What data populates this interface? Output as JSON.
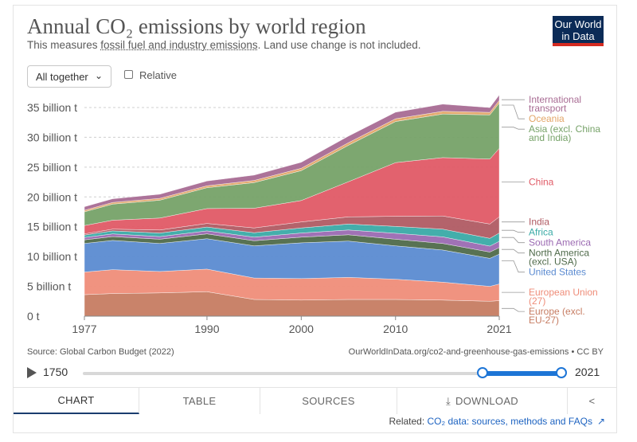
{
  "header": {
    "title": "Annual CO₂ emissions by world region",
    "subtitle_pre": "This measures ",
    "subtitle_link": "fossil fuel and industry emissions",
    "subtitle_post": ". Land use change is not included.",
    "logo_line1": "Our World",
    "logo_line2": "in Data"
  },
  "controls": {
    "stack_mode": "All together",
    "relative_label": "Relative"
  },
  "colors": {
    "international_transport": "#a86b93",
    "oceania": "#e3a668",
    "asia": "#76a268",
    "china": "#e05a66",
    "india": "#b05b63",
    "africa": "#3aaaa6",
    "south_america": "#9b6ab2",
    "north_america": "#4f6a4a",
    "united_states": "#5b8bd1",
    "european_union": "#ef8d79",
    "europe": "#c67c62"
  },
  "chart_data": {
    "type": "area",
    "stacked": true,
    "title": "Annual CO₂ emissions by world region",
    "x": [
      1977,
      1980,
      1985,
      1990,
      1995,
      2000,
      2005,
      2010,
      2015,
      2020,
      2021
    ],
    "xlim": [
      1977,
      2021
    ],
    "ylim": [
      0,
      37
    ],
    "x_ticks": [
      "1977",
      "1990",
      "2000",
      "2010",
      "2021"
    ],
    "x_tick_values": [
      1977,
      1990,
      2000,
      2010,
      2021
    ],
    "y_ticks": [
      "0 t",
      "5 billion t",
      "10 billion t",
      "15 billion t",
      "20 billion t",
      "25 billion t",
      "30 billion t",
      "35 billion t"
    ],
    "y_tick_values": [
      0,
      5,
      10,
      15,
      20,
      25,
      30,
      35
    ],
    "unit": "billion t",
    "series": [
      {
        "name": "Europe (excl. EU-27)",
        "color_key": "europe",
        "values": [
          3.6,
          3.8,
          3.9,
          4.1,
          2.8,
          2.7,
          2.8,
          2.8,
          2.7,
          2.5,
          2.6
        ]
      },
      {
        "name": "European Union (27)",
        "color_key": "european_union",
        "values": [
          3.8,
          4.0,
          3.6,
          3.8,
          3.6,
          3.6,
          3.7,
          3.4,
          3.0,
          2.5,
          2.8
        ]
      },
      {
        "name": "United States",
        "color_key": "united_states",
        "values": [
          4.8,
          4.9,
          4.7,
          5.1,
          5.4,
          6.0,
          6.1,
          5.6,
          5.4,
          4.7,
          5.0
        ]
      },
      {
        "name": "North America (excl. USA)",
        "color_key": "north_america",
        "values": [
          0.6,
          0.65,
          0.7,
          0.8,
          0.85,
          0.95,
          1.05,
          1.1,
          1.1,
          1.05,
          1.1
        ]
      },
      {
        "name": "South America",
        "color_key": "south_america",
        "values": [
          0.4,
          0.45,
          0.45,
          0.5,
          0.6,
          0.7,
          0.8,
          1.0,
          1.1,
          1.0,
          1.05
        ]
      },
      {
        "name": "Africa",
        "color_key": "africa",
        "values": [
          0.4,
          0.5,
          0.6,
          0.65,
          0.75,
          0.85,
          1.0,
          1.15,
          1.3,
          1.3,
          1.4
        ]
      },
      {
        "name": "India",
        "color_key": "india",
        "values": [
          0.2,
          0.3,
          0.5,
          0.6,
          0.8,
          1.0,
          1.2,
          1.7,
          2.2,
          2.4,
          2.7
        ]
      },
      {
        "name": "China",
        "color_key": "china",
        "values": [
          1.4,
          1.5,
          2.0,
          2.5,
          3.3,
          3.6,
          5.9,
          9.0,
          9.8,
          10.9,
          11.5
        ]
      },
      {
        "name": "Asia (excl. China and India)",
        "color_key": "asia",
        "values": [
          2.3,
          2.7,
          3.0,
          3.5,
          4.3,
          5.0,
          6.1,
          6.9,
          7.3,
          7.4,
          7.6
        ]
      },
      {
        "name": "Oceania",
        "color_key": "oceania",
        "values": [
          0.25,
          0.27,
          0.3,
          0.32,
          0.36,
          0.4,
          0.44,
          0.46,
          0.46,
          0.43,
          0.44
        ]
      },
      {
        "name": "International transport",
        "color_key": "international_transport",
        "values": [
          0.6,
          0.62,
          0.7,
          0.8,
          0.9,
          1.0,
          1.1,
          1.1,
          1.2,
          0.8,
          0.9
        ]
      }
    ],
    "legend": [
      {
        "key": "international_transport",
        "lines": [
          "International",
          "transport"
        ],
        "value": 36.3
      },
      {
        "key": "oceania",
        "lines": [
          "Oceania"
        ],
        "value": 35.4
      },
      {
        "key": "asia",
        "lines": [
          "Asia (excl. China",
          "and India)"
        ],
        "value": 31.7
      },
      {
        "key": "china",
        "lines": [
          "China"
        ],
        "value": 22.5
      },
      {
        "key": "india",
        "lines": [
          "India"
        ],
        "value": 15.8
      },
      {
        "key": "africa",
        "lines": [
          "Africa"
        ],
        "value": 14.4
      },
      {
        "key": "south_america",
        "lines": [
          "South America"
        ],
        "value": 13.2
      },
      {
        "key": "north_america",
        "lines": [
          "North America",
          "(excl. USA)"
        ],
        "value": 11.2
      },
      {
        "key": "united_states",
        "lines": [
          "United States"
        ],
        "value": 9.3
      },
      {
        "key": "european_union",
        "lines": [
          "European Union",
          "(27)"
        ],
        "value": 4.0
      },
      {
        "key": "europe",
        "lines": [
          "Europe (excl.",
          "EU-27)"
        ],
        "value": 1.3
      }
    ]
  },
  "footer": {
    "source": "Source: Global Carbon Budget (2022)",
    "url": "OurWorldInData.org/co2-and-greenhouse-gas-emissions • CC BY",
    "timeline_start": "1750",
    "timeline_end": "2021",
    "range_start": 1977,
    "range_end": 2021,
    "tabs": [
      "CHART",
      "TABLE",
      "SOURCES",
      "DOWNLOAD"
    ],
    "related_prefix": "Related: ",
    "related_link": "CO₂ data: sources, methods and FAQs"
  }
}
